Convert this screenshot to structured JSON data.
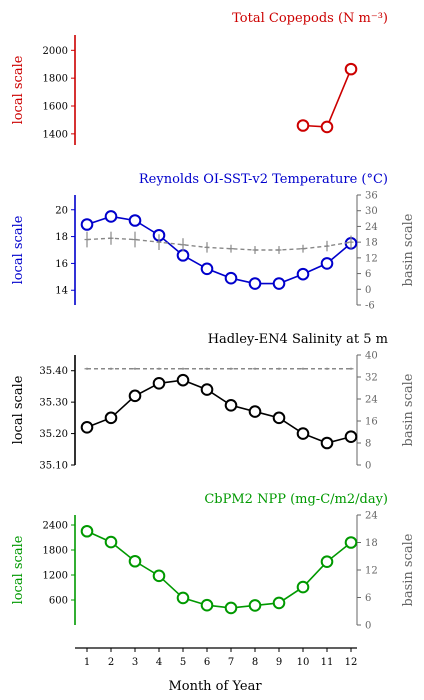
{
  "figure": {
    "xlabel": "Month of Year"
  },
  "chart_data": [
    {
      "type": "line",
      "title": "Total Copepods (N m⁻³)",
      "ylabel_left": "local scale",
      "color": "#cc0000",
      "left_ticks": [
        1400,
        1600,
        1800,
        2000
      ],
      "left_tick_labels": [
        "1400",
        "1600",
        "1800",
        "2000"
      ],
      "ylim_left": [
        1320,
        2110
      ],
      "series": [
        {
          "axis": "left",
          "style": "solid-circles",
          "x": [
            10,
            11,
            12
          ],
          "values": [
            1460,
            1450,
            1865
          ]
        }
      ]
    },
    {
      "type": "line",
      "title": "Reynolds OI-SST-v2 Temperature (°C)",
      "ylabel_left": "local scale",
      "ylabel_right": "basin scale",
      "color": "#0000cc",
      "left_ticks": [
        14,
        16,
        18,
        20
      ],
      "left_tick_labels": [
        "14",
        "16",
        "18",
        "20"
      ],
      "ylim_left": [
        12.9,
        21.1
      ],
      "right_ticks": [
        -6,
        0,
        6,
        12,
        18,
        24,
        30,
        36
      ],
      "right_tick_labels": [
        "-6",
        "0",
        "6",
        "12",
        "18",
        "24",
        "30",
        "36"
      ],
      "ylim_right": [
        -6,
        36
      ],
      "series": [
        {
          "axis": "left",
          "style": "solid-circles",
          "x": [
            1,
            2,
            3,
            4,
            5,
            6,
            7,
            8,
            9,
            10,
            11,
            12
          ],
          "values": [
            18.9,
            19.5,
            19.2,
            18.1,
            16.6,
            15.6,
            14.9,
            14.5,
            14.5,
            15.2,
            16.0,
            17.5
          ]
        },
        {
          "axis": "right",
          "style": "dashed-gray-errorbars",
          "x": [
            1,
            2,
            3,
            4,
            5,
            6,
            7,
            8,
            9,
            10,
            11,
            12
          ],
          "values": [
            19,
            19.5,
            19,
            18,
            17,
            16,
            15.5,
            15,
            15,
            15.5,
            16.5,
            18
          ],
          "err": [
            3,
            2.5,
            3,
            3,
            2.5,
            2,
            1.5,
            1.5,
            1.5,
            1.5,
            2,
            2.5
          ]
        }
      ]
    },
    {
      "type": "line",
      "title": "Hadley-EN4 Salinity at 5 m",
      "ylabel_left": "local scale",
      "ylabel_right": "basin scale",
      "color": "#000000",
      "left_ticks": [
        35.1,
        35.2,
        35.3,
        35.4
      ],
      "left_tick_labels": [
        "35.10",
        "35.20",
        "35.30",
        "35.40"
      ],
      "ylim_left": [
        35.1,
        35.45
      ],
      "right_ticks": [
        0,
        8,
        16,
        24,
        32,
        40
      ],
      "right_tick_labels": [
        "0",
        "8",
        "16",
        "24",
        "32",
        "40"
      ],
      "ylim_right": [
        0,
        40
      ],
      "series": [
        {
          "axis": "left",
          "style": "solid-circles",
          "x": [
            1,
            2,
            3,
            4,
            5,
            6,
            7,
            8,
            9,
            10,
            11,
            12
          ],
          "values": [
            35.22,
            35.25,
            35.32,
            35.36,
            35.37,
            35.34,
            35.29,
            35.27,
            35.25,
            35.2,
            35.17,
            35.19
          ]
        },
        {
          "axis": "right",
          "style": "dashed-gray-errorbars",
          "x": [
            1,
            2,
            3,
            4,
            5,
            6,
            7,
            8,
            9,
            10,
            11,
            12
          ],
          "values": [
            35,
            35,
            35,
            35,
            35,
            35,
            35,
            35,
            35,
            35,
            35,
            35
          ],
          "err": [
            0.4,
            0.4,
            0.4,
            0.4,
            0.4,
            0.4,
            0.4,
            0.4,
            0.4,
            0.4,
            0.4,
            0.4
          ]
        }
      ]
    },
    {
      "type": "line",
      "title": "CbPM2 NPP (mg-C/m2/day)",
      "ylabel_left": "local scale",
      "ylabel_right": "basin scale",
      "color": "#009900",
      "left_ticks": [
        600,
        1200,
        1800,
        2400
      ],
      "left_tick_labels": [
        "600",
        "1200",
        "1800",
        "2400"
      ],
      "ylim_left": [
        0,
        2640
      ],
      "right_ticks": [
        0,
        6,
        12,
        18,
        24
      ],
      "right_tick_labels": [
        "0",
        "6",
        "12",
        "18",
        "24"
      ],
      "ylim_right": [
        0,
        24
      ],
      "series": [
        {
          "axis": "left",
          "style": "solid-circles",
          "x": [
            1,
            2,
            3,
            4,
            5,
            6,
            7,
            8,
            9,
            10,
            11,
            12
          ],
          "values": [
            2250,
            1990,
            1530,
            1180,
            650,
            475,
            410,
            470,
            530,
            910,
            1520,
            1980
          ]
        }
      ]
    }
  ],
  "x_axis": {
    "ticks": [
      1,
      2,
      3,
      4,
      5,
      6,
      7,
      8,
      9,
      10,
      11,
      12
    ],
    "tick_labels": [
      "1",
      "2",
      "3",
      "4",
      "5",
      "6",
      "7",
      "8",
      "9",
      "10",
      "11",
      "12"
    ]
  }
}
